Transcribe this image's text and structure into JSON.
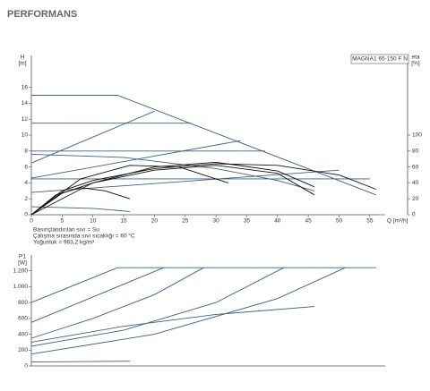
{
  "header": {
    "title": "PERFORMANS"
  },
  "chart_data": [
    {
      "type": "line",
      "ylabel": "H",
      "yunit": "[m]",
      "y2label": "eta",
      "y2unit": "[%]",
      "xlabel": "Q [m³/h]",
      "annotation": "MAGNA1 65-150 F N",
      "notes": [
        "Basınçlandırılan sıvı = Su",
        "Çalışma sırasında sıvı sıcaklığı = 60 °C",
        "Yoğunluk = 983,2 kg/m³"
      ],
      "xlim": [
        0,
        57.5
      ],
      "xticks": [
        0,
        5,
        10,
        15,
        20,
        25,
        30,
        35,
        40,
        45,
        50,
        55
      ],
      "ylim": [
        0,
        20
      ],
      "yticks": [
        0,
        2,
        4,
        6,
        8,
        10,
        12,
        14,
        16
      ],
      "y2lim": [
        0,
        200
      ],
      "y2ticks": [
        0,
        20,
        40,
        60,
        80,
        100
      ],
      "series": [
        {
          "color": "#3d5f86",
          "x": [
            0,
            14,
            56
          ],
          "values": [
            15,
            15,
            2.5
          ]
        },
        {
          "color": "#3d5f86",
          "x": [
            0,
            26
          ],
          "values": [
            11.5,
            11.5
          ]
        },
        {
          "color": "#3d5f86",
          "x": [
            0,
            38
          ],
          "values": [
            8,
            8
          ]
        },
        {
          "color": "#3d5f86",
          "x": [
            0,
            20
          ],
          "values": [
            6.5,
            13
          ]
        },
        {
          "color": "#3d5f86",
          "x": [
            0,
            34
          ],
          "values": [
            4.6,
            9.3
          ]
        },
        {
          "color": "#3d5f86",
          "x": [
            0,
            55
          ],
          "values": [
            4.5,
            4.5
          ]
        },
        {
          "color": "#3d5f86",
          "x": [
            0,
            50
          ],
          "values": [
            2.8,
            5.6
          ]
        },
        {
          "color": "#3d5f86",
          "x": [
            0,
            15,
            30,
            40,
            46
          ],
          "values": [
            7.6,
            7.2,
            5.8,
            4.3,
            3
          ]
        },
        {
          "color": "#3d5f86",
          "x": [
            0,
            10,
            16
          ],
          "values": [
            1,
            0.8,
            0.4
          ]
        },
        {
          "color": "#111111",
          "x": [
            0,
            5,
            10,
            20,
            30,
            40,
            50,
            56
          ],
          "values": [
            0,
            3,
            4.3,
            5.8,
            6.4,
            6.2,
            5,
            3.2
          ]
        },
        {
          "color": "#111111",
          "x": [
            0,
            5,
            10,
            20,
            30,
            40,
            46
          ],
          "values": [
            0,
            2.7,
            4,
            5.6,
            6.2,
            5.2,
            2.5
          ]
        },
        {
          "color": "#111111",
          "x": [
            0,
            4,
            8,
            12,
            16
          ],
          "values": [
            0,
            2.5,
            3.4,
            3,
            2
          ]
        },
        {
          "color": "#111111",
          "x": [
            0,
            10,
            20,
            30,
            40,
            46
          ],
          "values": [
            0,
            40,
            60,
            66,
            55,
            35
          ],
          "axis": "y2"
        },
        {
          "color": "#111111",
          "x": [
            0,
            8,
            16,
            24,
            32
          ],
          "values": [
            0,
            45,
            62,
            60,
            40
          ],
          "axis": "y2"
        }
      ]
    },
    {
      "type": "line",
      "ylabel": "P1",
      "yunit": "[W]",
      "xlim": [
        0,
        57.5
      ],
      "ylim": [
        0,
        1400
      ],
      "yticks": [
        0,
        200,
        400,
        600,
        800,
        {
          "value": 1000,
          "label": "1.000"
        },
        {
          "value": 1200,
          "label": "1.200"
        }
      ],
      "series": [
        {
          "color": "#3d5f86",
          "x": [
            0,
            14,
            56
          ],
          "values": [
            800,
            1240,
            1240
          ]
        },
        {
          "color": "#3d5f86",
          "x": [
            0,
            21.5
          ],
          "values": [
            550,
            1240
          ]
        },
        {
          "color": "#3d5f86",
          "x": [
            0,
            10,
            20,
            28
          ],
          "values": [
            350,
            600,
            900,
            1240
          ]
        },
        {
          "color": "#3d5f86",
          "x": [
            0,
            15,
            30,
            41
          ],
          "values": [
            250,
            450,
            800,
            1240
          ]
        },
        {
          "color": "#3d5f86",
          "x": [
            0,
            20,
            40,
            51
          ],
          "values": [
            150,
            400,
            850,
            1240
          ]
        },
        {
          "color": "#3d5f86",
          "x": [
            0,
            15,
            30,
            46
          ],
          "values": [
            300,
            500,
            650,
            750
          ]
        },
        {
          "color": "#3d5f86",
          "x": [
            0,
            16
          ],
          "values": [
            50,
            60
          ]
        }
      ]
    }
  ]
}
